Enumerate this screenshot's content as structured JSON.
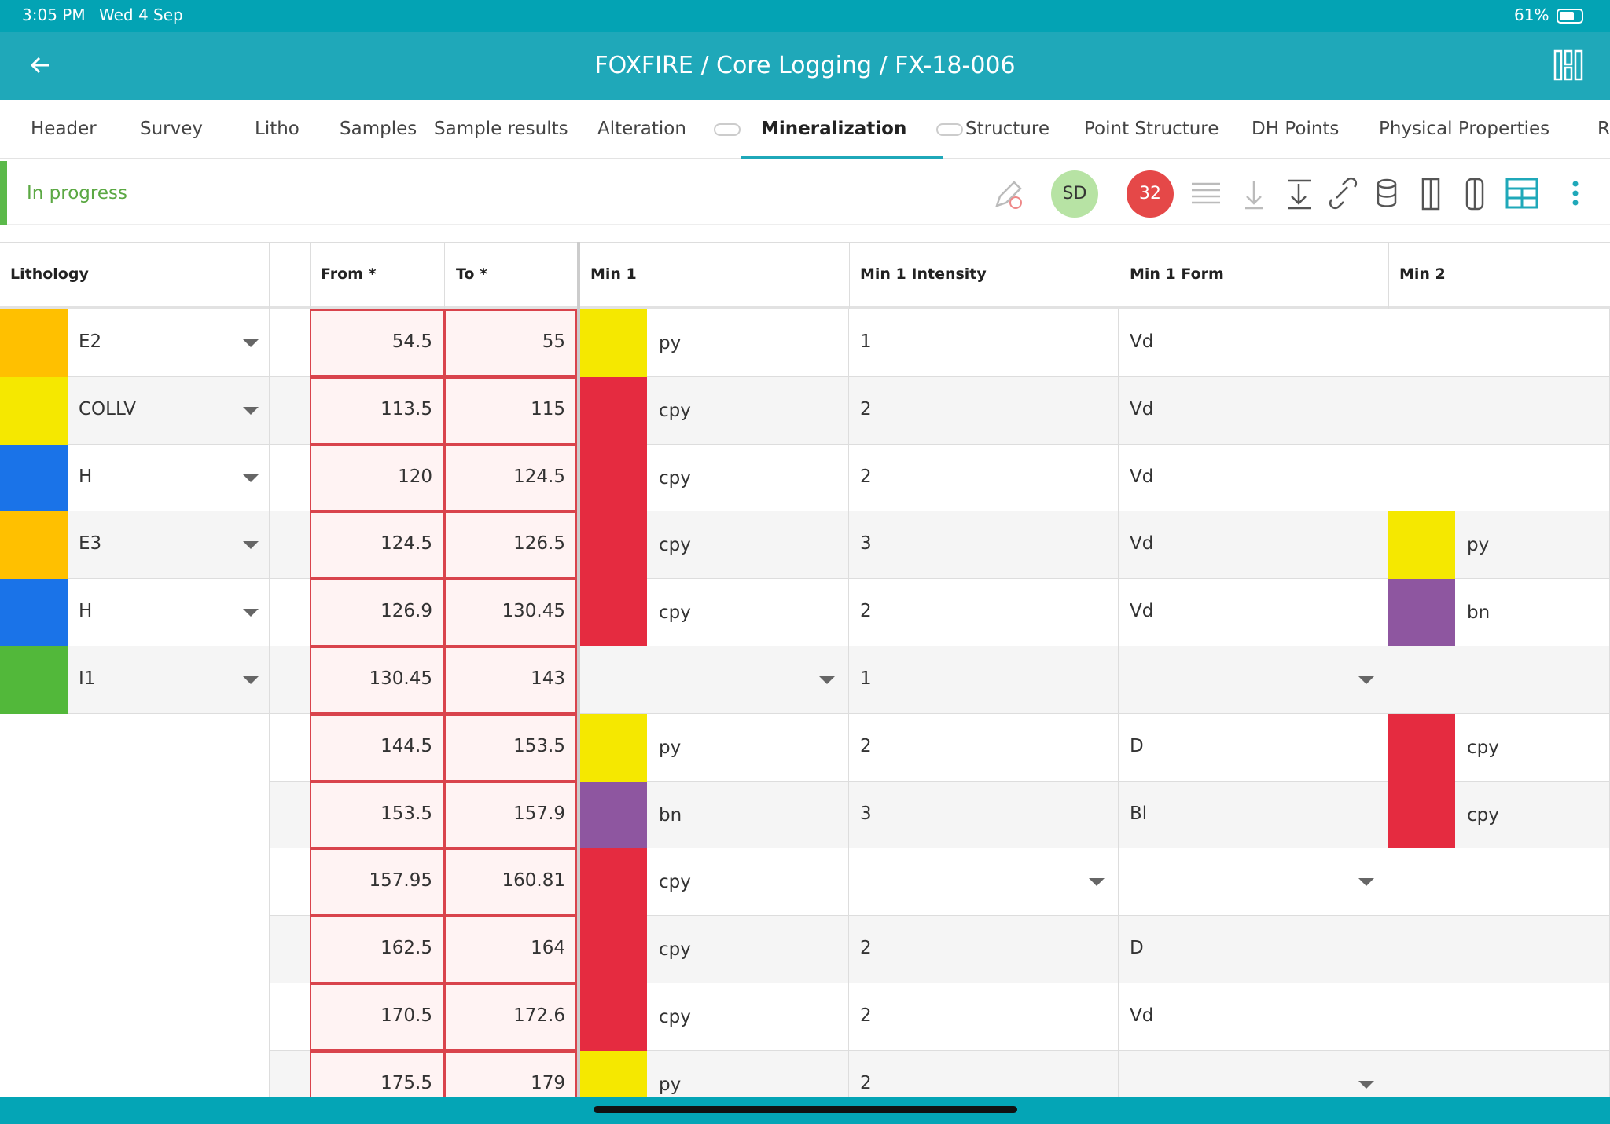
{
  "status_bar": {
    "time": "3:05 PM",
    "date": "Wed 4 Sep",
    "battery": "61%"
  },
  "header": {
    "title": "FOXFIRE / Core Logging / FX-18-006"
  },
  "tabs": [
    {
      "label": "Header"
    },
    {
      "label": "Survey"
    },
    {
      "label": "Litho"
    },
    {
      "label": "Samples"
    },
    {
      "label": "Sample results"
    },
    {
      "label": "Alteration",
      "linked": true
    },
    {
      "label": "Mineralization",
      "linked": true
    },
    {
      "label": "Structure"
    },
    {
      "label": "Point Structure"
    },
    {
      "label": "DH Points"
    },
    {
      "label": "Physical Properties"
    },
    {
      "label": "R"
    }
  ],
  "active_tab_index": 6,
  "toolbar": {
    "status": "In progress",
    "user": "SD",
    "count": "32"
  },
  "table": {
    "columns": {
      "lithology": "Lithology",
      "from": "From *",
      "to": "To *",
      "min1": "Min 1",
      "min1_intensity": "Min 1 Intensity",
      "min1_form": "Min 1 Form",
      "min2": "Min 2"
    },
    "mineral_colors": {
      "py": "#f5e800",
      "cpy": "#e52b40",
      "bn": "#8e56a0"
    },
    "lithology": [
      {
        "code": "E2",
        "color": "#ffc000"
      },
      {
        "code": "COLLV",
        "color": "#f5e800"
      },
      {
        "code": "H",
        "color": "#1a73e8"
      },
      {
        "code": "E3",
        "color": "#ffc000"
      },
      {
        "code": "H",
        "color": "#1a73e8"
      },
      {
        "code": "I1",
        "color": "#52b83a"
      }
    ],
    "rows": [
      {
        "from": 54.5,
        "to": 55,
        "min1": "py",
        "min1_intensity": "1",
        "min1_form": "Vd",
        "min2": null
      },
      {
        "from": 113.5,
        "to": 115,
        "min1": "cpy",
        "min1_intensity": "2",
        "min1_form": "Vd",
        "min2": null
      },
      {
        "from": 120,
        "to": 124.5,
        "min1": "cpy",
        "min1_intensity": "2",
        "min1_form": "Vd",
        "min2": null
      },
      {
        "from": 124.5,
        "to": 126.5,
        "min1": "cpy",
        "min1_intensity": "3",
        "min1_form": "Vd",
        "min2": "py"
      },
      {
        "from": 126.9,
        "to": 130.45,
        "min1": "cpy",
        "min1_intensity": "2",
        "min1_form": "Vd",
        "min2": "bn"
      },
      {
        "from": 130.45,
        "to": 143,
        "min1": null,
        "min1_intensity": "1",
        "min1_form": null,
        "min2": null
      },
      {
        "from": 144.5,
        "to": 153.5,
        "min1": "py",
        "min1_intensity": "2",
        "min1_form": "D",
        "min2": "cpy"
      },
      {
        "from": 153.5,
        "to": 157.9,
        "min1": "bn",
        "min1_intensity": "3",
        "min1_form": "Bl",
        "min2": "cpy"
      },
      {
        "from": 157.95,
        "to": 160.81,
        "min1": "cpy",
        "min1_intensity": null,
        "min1_form": null,
        "min2": null
      },
      {
        "from": 162.5,
        "to": 164,
        "min1": "cpy",
        "min1_intensity": "2",
        "min1_form": "D",
        "min2": null
      },
      {
        "from": 170.5,
        "to": 172.6,
        "min1": "cpy",
        "min1_intensity": "2",
        "min1_form": "Vd",
        "min2": null
      },
      {
        "from": 175.5,
        "to": 179,
        "min1": "py",
        "min1_intensity": "2",
        "min1_form": null,
        "min2": null
      }
    ]
  }
}
